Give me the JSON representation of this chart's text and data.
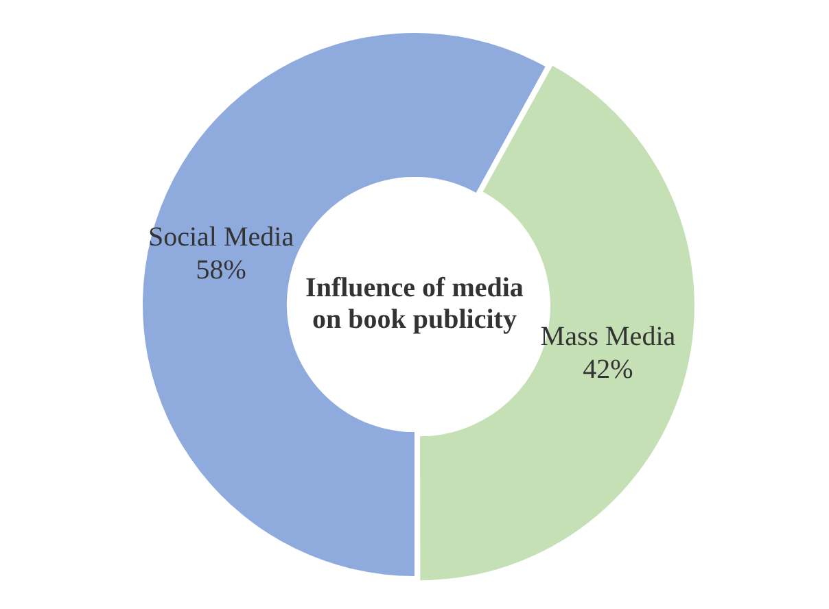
{
  "chart_data": {
    "type": "donut",
    "title": "Influence of media on book publicity",
    "categories": [
      "Social Media",
      "Mass Media"
    ],
    "values": [
      58,
      42
    ],
    "colors": [
      "#8faadc",
      "#c5e0b4"
    ],
    "value_labels": [
      "58%",
      "42%"
    ],
    "legend": false
  }
}
